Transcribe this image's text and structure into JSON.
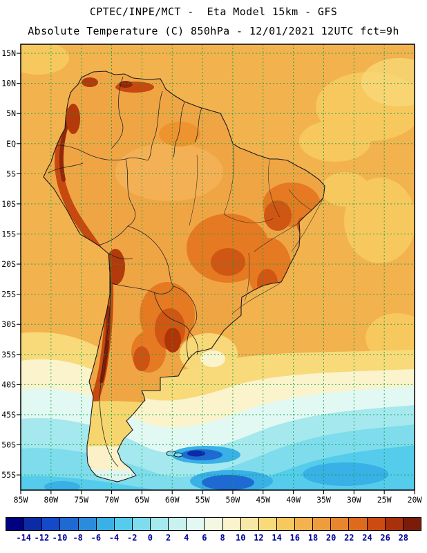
{
  "header": {
    "title_line1": "CPTEC/INPE/MCT -  Eta Model 15km - GFS",
    "title_line2": "Absolute Temperature (C) 850hPa - 12/01/2021 12UTC fct=9h"
  },
  "map": {
    "lat_labels": [
      "15N",
      "10N",
      "5N",
      "EQ",
      "5S",
      "10S",
      "15S",
      "20S",
      "25S",
      "30S",
      "35S",
      "40S",
      "45S",
      "50S",
      "55S"
    ],
    "lon_labels": [
      "85W",
      "80W",
      "75W",
      "70W",
      "65W",
      "60W",
      "55W",
      "50W",
      "45W",
      "40W",
      "35W",
      "30W",
      "25W",
      "20W"
    ],
    "gridline_color": "#00a844",
    "frame_color": "#000000",
    "coastline_color": "#1a1a1a"
  },
  "colorbar": {
    "unit": "C",
    "tick_labels": [
      "-14",
      "-12",
      "-10",
      "-8",
      "-6",
      "-4",
      "-2",
      "0",
      "2",
      "4",
      "6",
      "8",
      "10",
      "12",
      "14",
      "16",
      "18",
      "20",
      "22",
      "24",
      "26",
      "28"
    ],
    "colors": [
      "#000080",
      "#0a2aa6",
      "#1449c8",
      "#1e6ad2",
      "#2b8cdc",
      "#39b0e6",
      "#55ccec",
      "#7fdcec",
      "#a5e8ee",
      "#c8f2f0",
      "#e2f8f2",
      "#f3f8e2",
      "#faf3cc",
      "#f8e8a8",
      "#f8da7a",
      "#f6c85e",
      "#f2b24e",
      "#ee9d3c",
      "#e8862e",
      "#de6a1e",
      "#cc4b12",
      "#a8300c",
      "#7a1c08"
    ],
    "label_color": "#000099"
  },
  "chart_data": {
    "type": "heatmap",
    "title": "Absolute Temperature (C) 850hPa",
    "model": "CPTEC/INPE/MCT Eta Model 15km - GFS",
    "valid_time": "12/01/2021 12UTC fct=9h",
    "domain": "South America and adjacent oceans (85W-20W, ~16N-57S)",
    "x_ticks": [
      "85W",
      "80W",
      "75W",
      "70W",
      "65W",
      "60W",
      "55W",
      "50W",
      "45W",
      "40W",
      "35W",
      "30W",
      "25W",
      "20W"
    ],
    "y_ticks": [
      "15N",
      "10N",
      "5N",
      "EQ",
      "5S",
      "10S",
      "15S",
      "20S",
      "25S",
      "30S",
      "35S",
      "40S",
      "45S",
      "50S",
      "55S"
    ],
    "levels_c": [
      -14,
      -12,
      -10,
      -8,
      -6,
      -4,
      -2,
      0,
      2,
      4,
      6,
      8,
      10,
      12,
      14,
      16,
      18,
      20,
      22,
      24,
      26,
      28
    ],
    "palette": [
      "#000080",
      "#0a2aa6",
      "#1449c8",
      "#1e6ad2",
      "#2b8cdc",
      "#39b0e6",
      "#55ccec",
      "#7fdcec",
      "#a5e8ee",
      "#c8f2f0",
      "#e2f8f2",
      "#f3f8e2",
      "#faf3cc",
      "#f8e8a8",
      "#f8da7a",
      "#f6c85e",
      "#f2b24e",
      "#ee9d3c",
      "#e8862e",
      "#de6a1e",
      "#cc4b12",
      "#a8300c",
      "#7a1c08"
    ],
    "summary": [
      "Warmest values (>24 C, dark red/brown) along the Andes cordillera from Colombia to central Chile/Argentina, the Bolivian Altiplano and the Venezuelan coastal range",
      "Hot (20-26 C, deep orange) over interior and northeast Brazil and the Paraguay / northern Argentina Chaco",
      "Orange (16-20 C) over tropical Atlantic/Pacific and Amazon lowlands; lighter gold patches (12-16 C) in the open tropical Atlantic",
      "Yellow/cream (6-14 C) band near 30S-40S including Uruguay and southern Brazil coast",
      "Cyan/blue (<6 C) Southern Ocean south of ~42S with cold pools (<-4 C, navy) near 50S-55S"
    ]
  }
}
